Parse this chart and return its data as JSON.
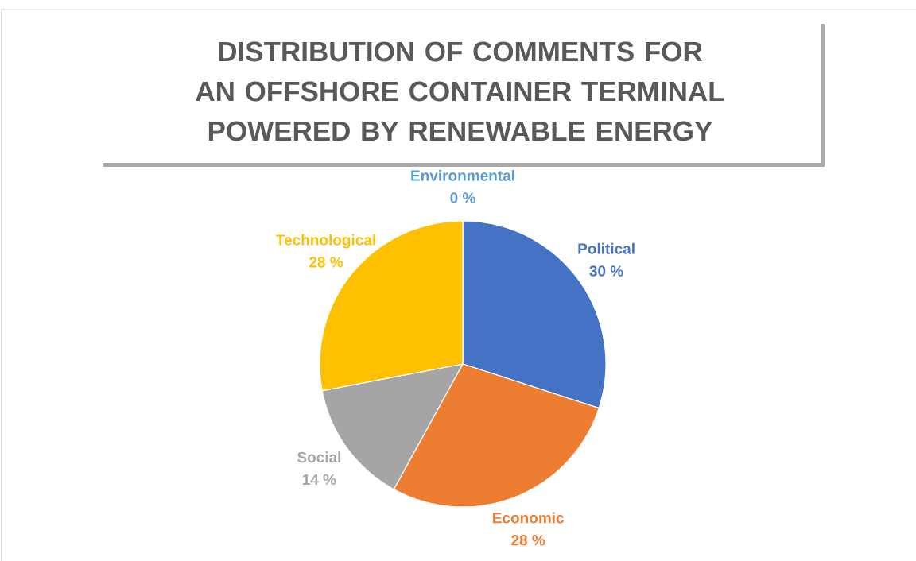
{
  "chart_data": {
    "type": "pie",
    "title": "DISTRIBUTION OF COMMENTS FOR AN OFFSHORE CONTAINER TERMINAL POWERED BY RENEWABLE ENERGY",
    "categories": [
      "Political",
      "Economic",
      "Social",
      "Technological",
      "Environmental"
    ],
    "values": [
      30,
      28,
      14,
      28,
      0
    ],
    "value_labels": [
      "30 %",
      "28 %",
      "14 %",
      "28 %",
      "0 %"
    ],
    "colors": [
      "#4472c4",
      "#ed7d31",
      "#a5a5a5",
      "#ffc000",
      "#5b9bd5"
    ]
  }
}
